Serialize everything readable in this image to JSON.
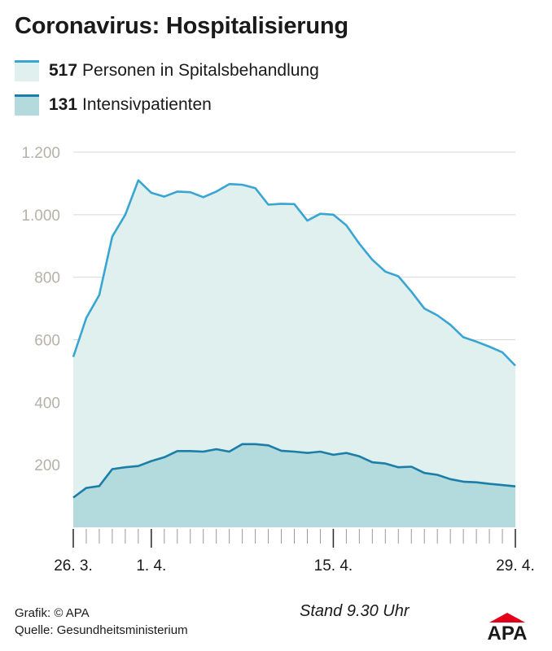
{
  "title": "Coronavirus: Hospitalisierung",
  "legend": [
    {
      "number": "517",
      "label": "Personen in Spitalsbehandlung",
      "line_color": "#39a5d2",
      "fill_color": "#dff0ef"
    },
    {
      "number": "131",
      "label": "Intensivpatienten",
      "line_color": "#1b7ea8",
      "fill_color": "#b3dadd"
    }
  ],
  "footer": {
    "grafik": "Grafik: © APA",
    "quelle": "Quelle: Gesundheitsministerium",
    "stand": "Stand 9.30 Uhr",
    "logo_text": "APA"
  },
  "chart_data": {
    "type": "area",
    "x": [
      "26.3.",
      "27.3.",
      "28.3.",
      "29.3.",
      "30.3.",
      "31.3.",
      "1.4.",
      "2.4.",
      "3.4.",
      "4.4.",
      "5.4.",
      "6.4.",
      "7.4.",
      "8.4.",
      "9.4.",
      "10.4.",
      "11.4.",
      "12.4.",
      "13.4.",
      "14.4.",
      "15.4.",
      "16.4.",
      "17.4.",
      "18.4.",
      "19.4.",
      "20.4.",
      "21.4.",
      "22.4.",
      "23.4.",
      "24.4.",
      "25.4.",
      "26.4.",
      "27.4.",
      "28.4.",
      "29.4."
    ],
    "x_tick_labels": [
      {
        "label": "26. 3.",
        "x": "26.3."
      },
      {
        "label": "1. 4.",
        "x": "1.4."
      },
      {
        "label": "15. 4.",
        "x": "15.4."
      },
      {
        "label": "29. 4.",
        "x": "29.4."
      }
    ],
    "series": [
      {
        "name": "Personen in Spitalsbehandlung",
        "values": [
          545,
          670,
          743,
          930,
          1000,
          1110,
          1070,
          1058,
          1074,
          1072,
          1056,
          1074,
          1098,
          1096,
          1085,
          1032,
          1035,
          1034,
          981,
          1003,
          1000,
          966,
          907,
          856,
          818,
          803,
          754,
          700,
          678,
          648,
          608,
          594,
          578,
          560,
          517
        ]
      },
      {
        "name": "Intensivpatienten",
        "values": [
          95,
          126,
          132,
          186,
          192,
          196,
          212,
          224,
          244,
          244,
          242,
          250,
          242,
          266,
          266,
          262,
          245,
          242,
          238,
          242,
          232,
          238,
          227,
          208,
          204,
          192,
          194,
          174,
          168,
          154,
          146,
          144,
          139,
          135,
          131
        ]
      }
    ],
    "ylim": [
      0,
      1200
    ],
    "yticks": [
      200,
      400,
      600,
      800,
      1000,
      1200
    ],
    "ytick_labels": [
      "200",
      "400",
      "600",
      "800",
      "1.000",
      "1.200"
    ],
    "grid": true
  }
}
